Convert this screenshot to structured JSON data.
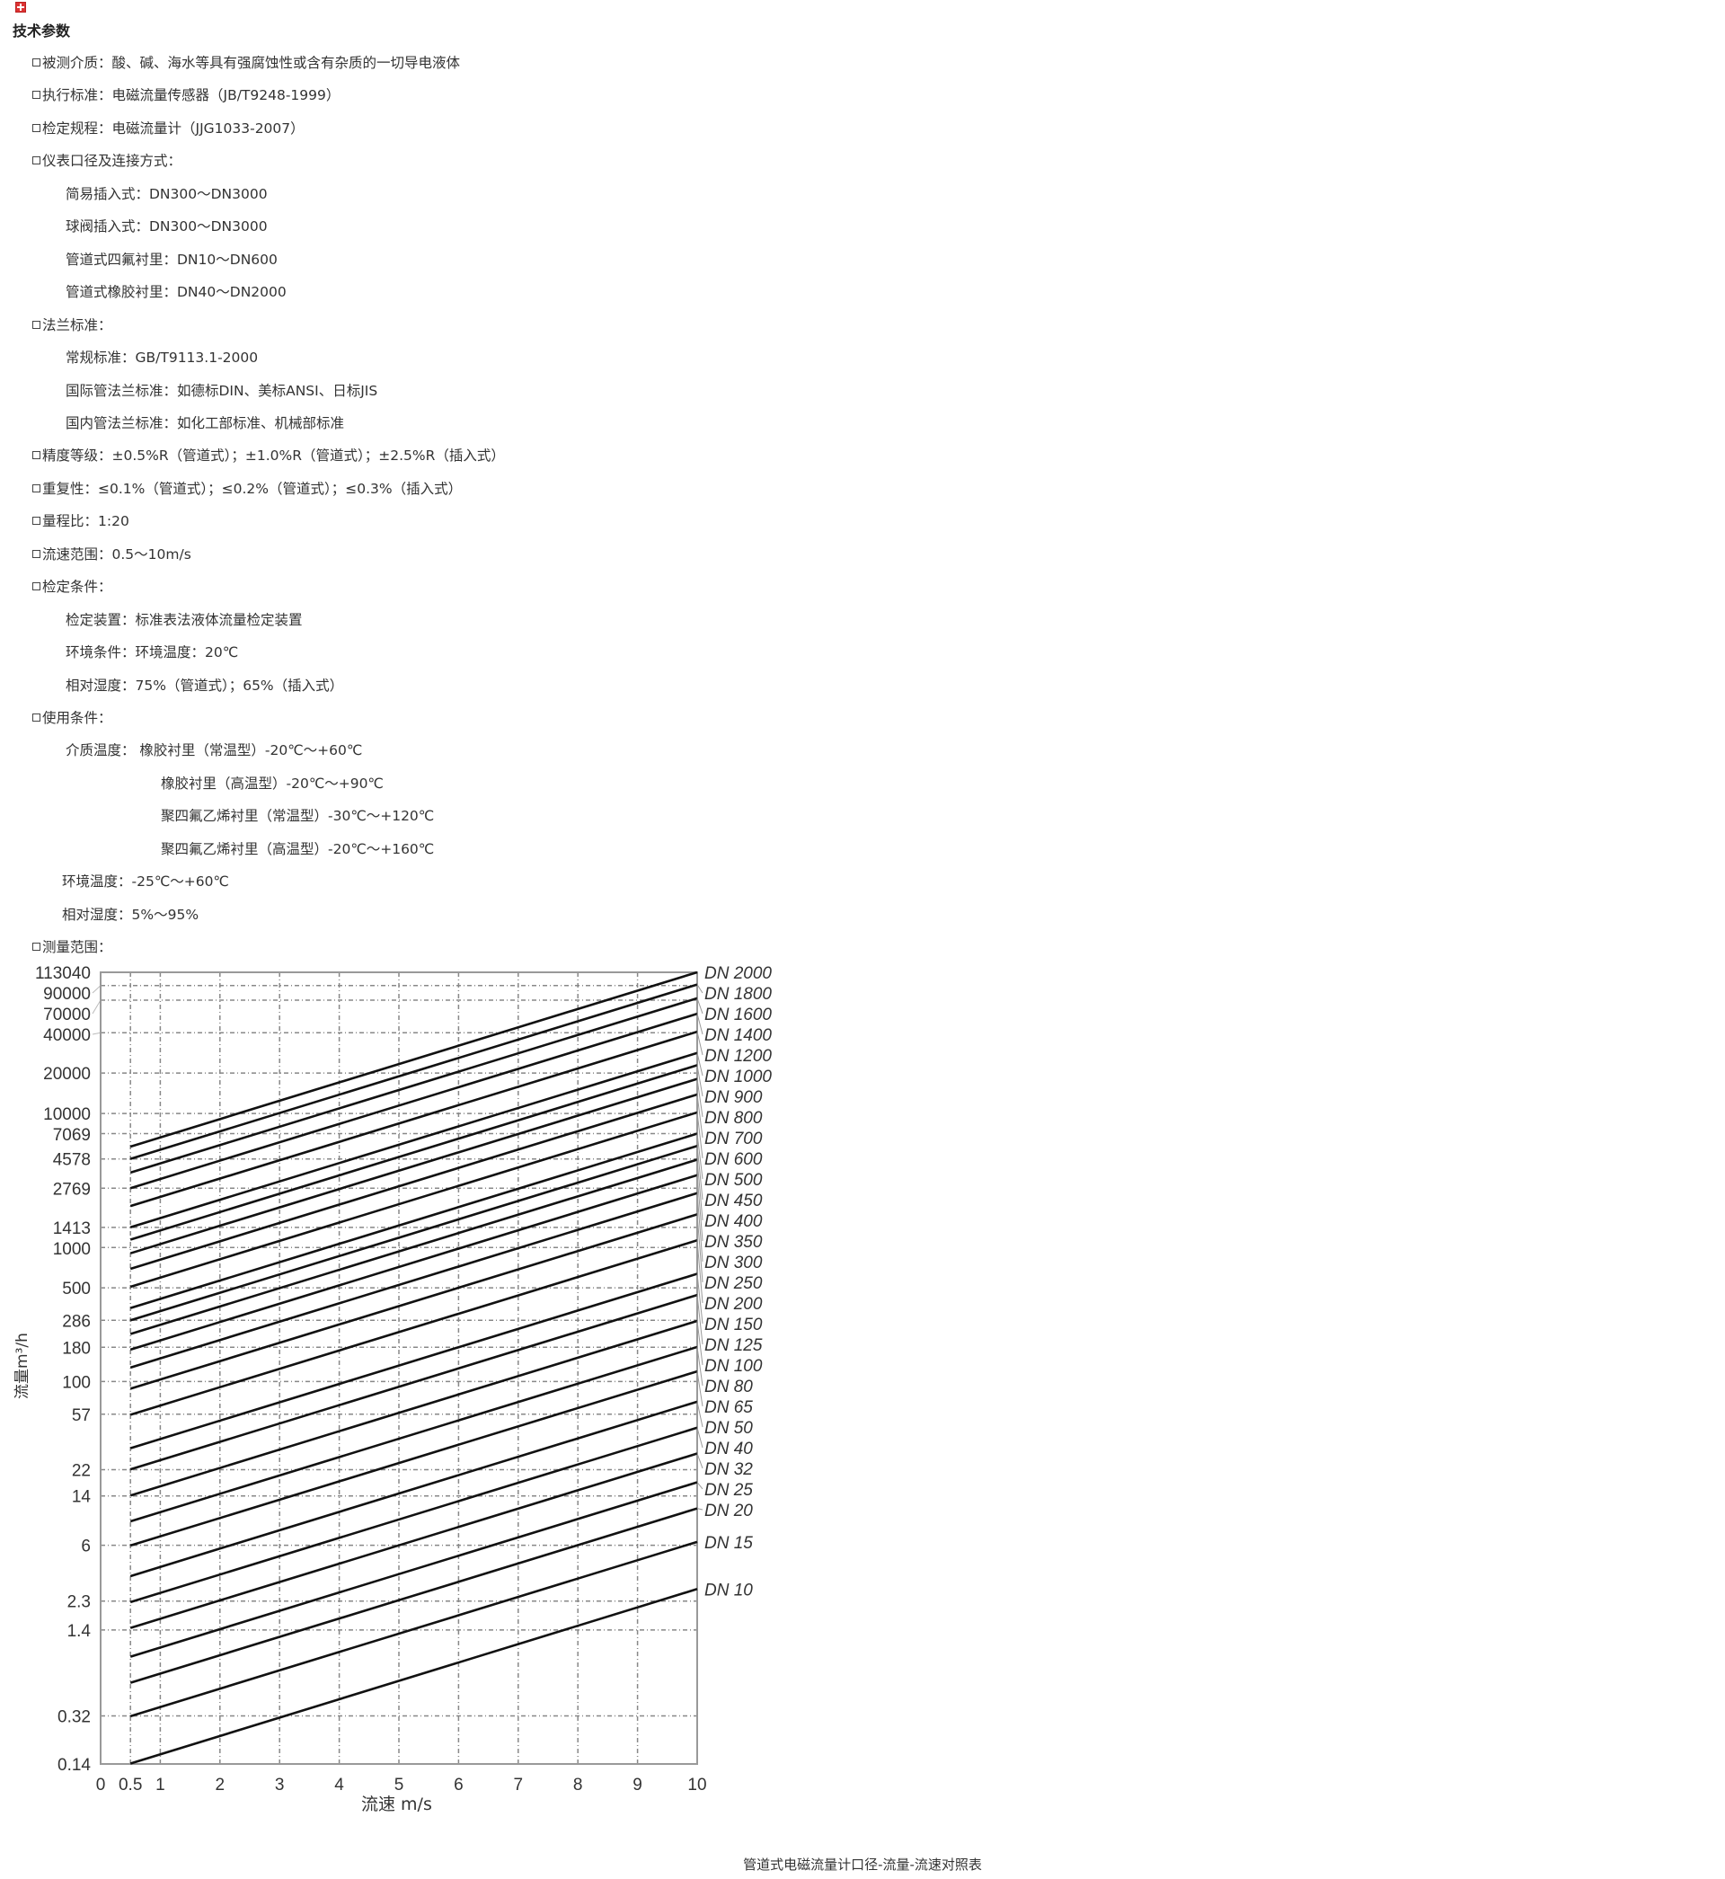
{
  "title": "技术参数",
  "icon": "broken-image-icon",
  "items": [
    {
      "level": 1,
      "bullet": true,
      "text": "被测介质：酸、碱、海水等具有强腐蚀性或含有杂质的一切导电液体"
    },
    {
      "level": 1,
      "bullet": true,
      "text": "执行标准：电磁流量传感器（JB/T9248-1999）"
    },
    {
      "level": 1,
      "bullet": true,
      "text": "检定规程：电磁流量计（JJG1033-2007）"
    },
    {
      "level": 1,
      "bullet": true,
      "text": "仪表口径及连接方式："
    },
    {
      "level": 2,
      "bullet": false,
      "text": "简易插入式：DN300～DN3000"
    },
    {
      "level": 2,
      "bullet": false,
      "text": "球阀插入式：DN300～DN3000"
    },
    {
      "level": 2,
      "bullet": false,
      "text": "管道式四氟衬里：DN10～DN600"
    },
    {
      "level": 2,
      "bullet": false,
      "text": "管道式橡胶衬里：DN40～DN2000"
    },
    {
      "level": 1,
      "bullet": true,
      "text": "法兰标准："
    },
    {
      "level": 2,
      "bullet": false,
      "text": "常规标准：GB/T9113.1-2000"
    },
    {
      "level": 2,
      "bullet": false,
      "text": "国际管法兰标准：如德标DIN、美标ANSI、日标JIS"
    },
    {
      "level": 2,
      "bullet": false,
      "text": "国内管法兰标准：如化工部标准、机械部标准"
    },
    {
      "level": 1,
      "bullet": true,
      "text": "精度等级：±0.5%R（管道式）；±1.0%R（管道式）；±2.5%R（插入式）"
    },
    {
      "level": 1,
      "bullet": true,
      "text": "重复性：≤0.1%（管道式）；≤0.2%（管道式）；≤0.3%（插入式）"
    },
    {
      "level": 1,
      "bullet": true,
      "text": "量程比：1:20"
    },
    {
      "level": 1,
      "bullet": true,
      "text": "流速范围：0.5～10m/s"
    },
    {
      "level": 1,
      "bullet": true,
      "text": "检定条件："
    },
    {
      "level": 2,
      "bullet": false,
      "text": "检定装置：标准表法液体流量检定装置"
    },
    {
      "level": 2,
      "bullet": false,
      "text": "环境条件：环境温度：20℃"
    },
    {
      "level": 2,
      "bullet": false,
      "text": "相对湿度：75%（管道式）；65%（插入式）"
    },
    {
      "level": 1,
      "bullet": true,
      "text": "使用条件："
    },
    {
      "level": 2,
      "bullet": false,
      "text": "介质温度： 橡胶衬里（常温型）-20℃～+60℃"
    },
    {
      "level": 3,
      "bullet": false,
      "text": "橡胶衬里（高温型）-20℃～+90℃"
    },
    {
      "level": 3,
      "bullet": false,
      "text": "聚四氟乙烯衬里（常温型）-30℃～+120℃"
    },
    {
      "level": 3,
      "bullet": false,
      "text": "聚四氟乙烯衬里（高温型）-20℃～+160℃"
    },
    {
      "level": 4,
      "bullet": false,
      "text": "环境温度：-25℃～+60℃"
    },
    {
      "level": 4,
      "bullet": false,
      "text": "相对湿度：5%～95%"
    },
    {
      "level": 1,
      "bullet": true,
      "text": "测量范围："
    }
  ],
  "chart_data": {
    "type": "line",
    "xlabel": "流速 m/s",
    "ylabel": "流量m³/h",
    "xlim": [
      0,
      10
    ],
    "ylim": [
      0.14,
      113040
    ],
    "yscale": "log",
    "grid": true,
    "x_ticks": [
      "0",
      "0.5",
      "1",
      "2",
      "3",
      "4",
      "5",
      "6",
      "7",
      "8",
      "9",
      "10"
    ],
    "y_ticks": [
      "113040",
      "90000",
      "70000",
      "40000",
      "20000",
      "10000",
      "7069",
      "4578",
      "2769",
      "1413",
      "1000",
      "500",
      "286",
      "180",
      "100",
      "57",
      "22",
      "14",
      "6",
      "2.3",
      "1.4",
      "0.32",
      "0.14"
    ],
    "series": [
      {
        "name": "DN 10",
        "x": [
          0.5,
          10
        ],
        "y": [
          0.141,
          2.83
        ]
      },
      {
        "name": "DN 15",
        "x": [
          0.5,
          10
        ],
        "y": [
          0.318,
          6.36
        ]
      },
      {
        "name": "DN 20",
        "x": [
          0.5,
          10
        ],
        "y": [
          0.565,
          11.3
        ]
      },
      {
        "name": "DN 25",
        "x": [
          0.5,
          10
        ],
        "y": [
          0.884,
          17.7
        ]
      },
      {
        "name": "DN 32",
        "x": [
          0.5,
          10
        ],
        "y": [
          1.45,
          29.0
        ]
      },
      {
        "name": "DN 40",
        "x": [
          0.5,
          10
        ],
        "y": [
          2.26,
          45.2
        ]
      },
      {
        "name": "DN 50",
        "x": [
          0.5,
          10
        ],
        "y": [
          3.53,
          70.7
        ]
      },
      {
        "name": "DN 65",
        "x": [
          0.5,
          10
        ],
        "y": [
          5.97,
          119
        ]
      },
      {
        "name": "DN 80",
        "x": [
          0.5,
          10
        ],
        "y": [
          9.05,
          181
        ]
      },
      {
        "name": "DN 100",
        "x": [
          0.5,
          10
        ],
        "y": [
          14.1,
          283
        ]
      },
      {
        "name": "DN 125",
        "x": [
          0.5,
          10
        ],
        "y": [
          22.1,
          442
        ]
      },
      {
        "name": "DN 150",
        "x": [
          0.5,
          10
        ],
        "y": [
          31.8,
          636
        ]
      },
      {
        "name": "DN 200",
        "x": [
          0.5,
          10
        ],
        "y": [
          56.5,
          1131
        ]
      },
      {
        "name": "DN 250",
        "x": [
          0.5,
          10
        ],
        "y": [
          88.4,
          1767
        ]
      },
      {
        "name": "DN 300",
        "x": [
          0.5,
          10
        ],
        "y": [
          127,
          2545
        ]
      },
      {
        "name": "DN 350",
        "x": [
          0.5,
          10
        ],
        "y": [
          173,
          3464
        ]
      },
      {
        "name": "DN 400",
        "x": [
          0.5,
          10
        ],
        "y": [
          226,
          4524
        ]
      },
      {
        "name": "DN 450",
        "x": [
          0.5,
          10
        ],
        "y": [
          286,
          5726
        ]
      },
      {
        "name": "DN 500",
        "x": [
          0.5,
          10
        ],
        "y": [
          353,
          7069
        ]
      },
      {
        "name": "DN 600",
        "x": [
          0.5,
          10
        ],
        "y": [
          509,
          10179
        ]
      },
      {
        "name": "DN 700",
        "x": [
          0.5,
          10
        ],
        "y": [
          693,
          13854
        ]
      },
      {
        "name": "DN 800",
        "x": [
          0.5,
          10
        ],
        "y": [
          905,
          18096
        ]
      },
      {
        "name": "DN 900",
        "x": [
          0.5,
          10
        ],
        "y": [
          1145,
          22902
        ]
      },
      {
        "name": "DN 1000",
        "x": [
          0.5,
          10
        ],
        "y": [
          1414,
          28274
        ]
      },
      {
        "name": "DN 1200",
        "x": [
          0.5,
          10
        ],
        "y": [
          2036,
          40715
        ]
      },
      {
        "name": "DN 1400",
        "x": [
          0.5,
          10
        ],
        "y": [
          2771,
          55418
        ]
      },
      {
        "name": "DN 1600",
        "x": [
          0.5,
          10
        ],
        "y": [
          3619,
          72382
        ]
      },
      {
        "name": "DN 1800",
        "x": [
          0.5,
          10
        ],
        "y": [
          4580,
          91609
        ]
      },
      {
        "name": "DN 2000",
        "x": [
          0.5,
          10
        ],
        "y": [
          5655,
          113097
        ]
      }
    ],
    "caption": "管道式电磁流量计口径-流量-流速对照表",
    "colors": {
      "line": "#111111",
      "grid": "#888888",
      "axis": "#999999"
    }
  }
}
